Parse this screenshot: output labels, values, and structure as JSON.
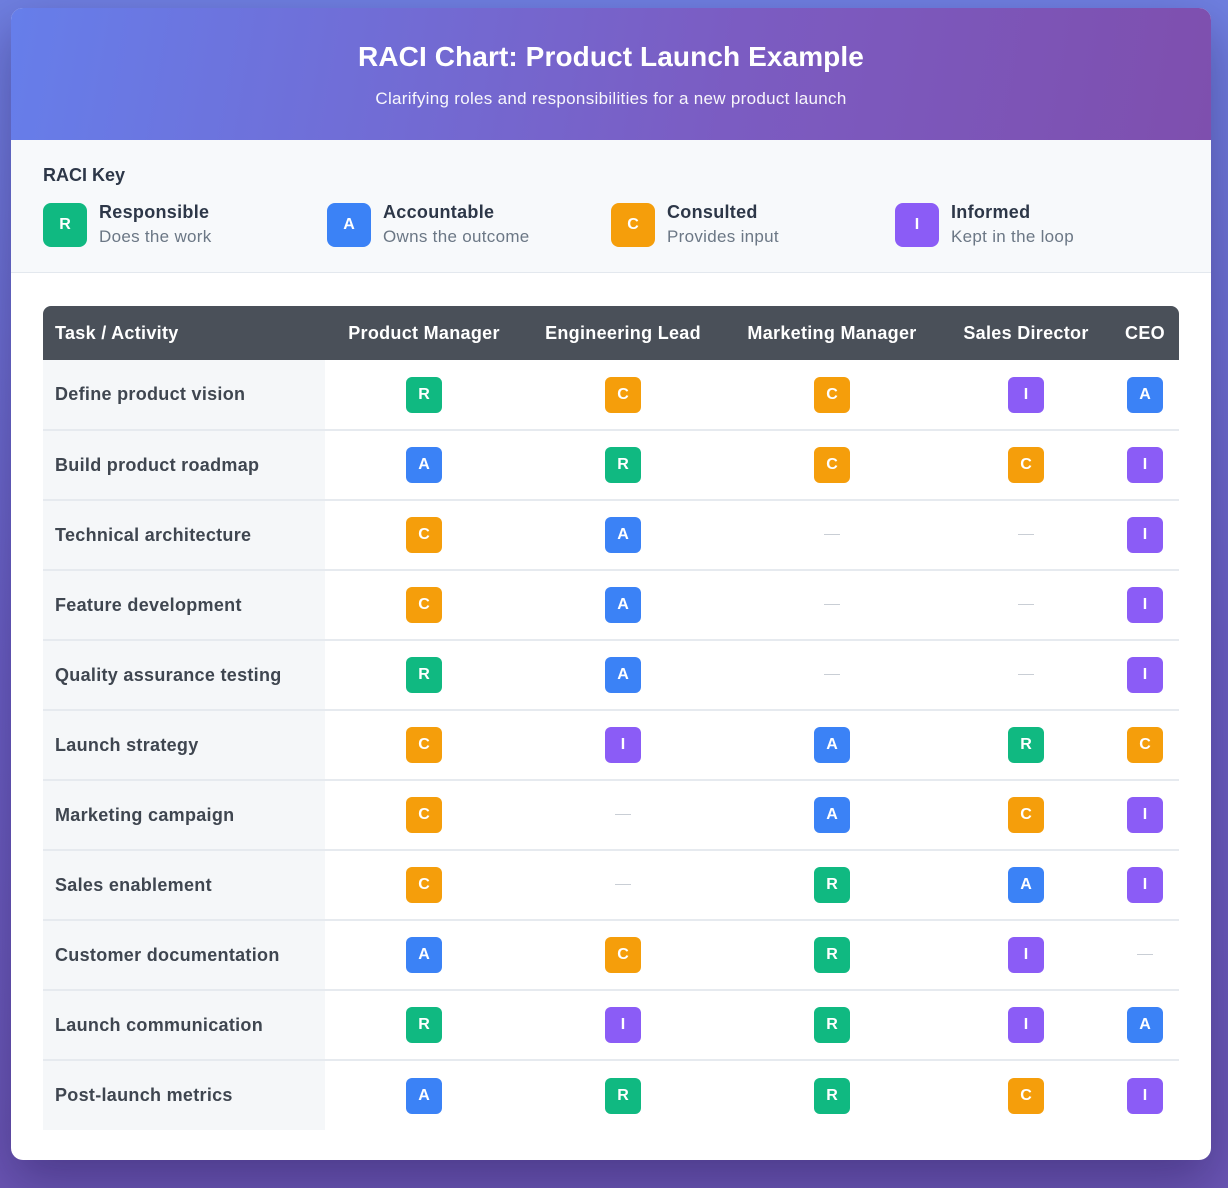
{
  "header": {
    "title": "RACI Chart: Product Launch Example",
    "subtitle": "Clarifying roles and responsibilities for a new product launch"
  },
  "key": {
    "title": "RACI Key",
    "items": [
      {
        "letter": "R",
        "name": "Responsible",
        "desc": "Does the work",
        "color": "#10b981"
      },
      {
        "letter": "A",
        "name": "Accountable",
        "desc": "Owns the outcome",
        "color": "#3b82f6"
      },
      {
        "letter": "C",
        "name": "Consulted",
        "desc": "Provides input",
        "color": "#f59e0b"
      },
      {
        "letter": "I",
        "name": "Informed",
        "desc": "Kept in the loop",
        "color": "#8b5cf6"
      }
    ]
  },
  "table": {
    "columns": [
      "Task / Activity",
      "Product Manager",
      "Engineering Lead",
      "Marketing Manager",
      "Sales Director",
      "CEO"
    ],
    "rows": [
      {
        "task": "Define product vision",
        "roles": [
          "R",
          "C",
          "C",
          "I",
          "A"
        ]
      },
      {
        "task": "Build product roadmap",
        "roles": [
          "A",
          "R",
          "C",
          "C",
          "I"
        ]
      },
      {
        "task": "Technical architecture",
        "roles": [
          "C",
          "A",
          "—",
          "—",
          "I"
        ]
      },
      {
        "task": "Feature development",
        "roles": [
          "C",
          "A",
          "—",
          "—",
          "I"
        ]
      },
      {
        "task": "Quality assurance testing",
        "roles": [
          "R",
          "A",
          "—",
          "—",
          "I"
        ]
      },
      {
        "task": "Launch strategy",
        "roles": [
          "C",
          "I",
          "A",
          "R",
          "C"
        ]
      },
      {
        "task": "Marketing campaign",
        "roles": [
          "C",
          "—",
          "A",
          "C",
          "I"
        ]
      },
      {
        "task": "Sales enablement",
        "roles": [
          "C",
          "—",
          "R",
          "A",
          "I"
        ]
      },
      {
        "task": "Customer documentation",
        "roles": [
          "A",
          "C",
          "R",
          "I",
          "—"
        ]
      },
      {
        "task": "Launch communication",
        "roles": [
          "R",
          "I",
          "R",
          "I",
          "A"
        ]
      },
      {
        "task": "Post-launch metrics",
        "roles": [
          "A",
          "R",
          "R",
          "C",
          "I"
        ]
      }
    ]
  },
  "colors": {
    "R": "#10b981",
    "A": "#3b82f6",
    "C": "#f59e0b",
    "I": "#8b5cf6"
  }
}
